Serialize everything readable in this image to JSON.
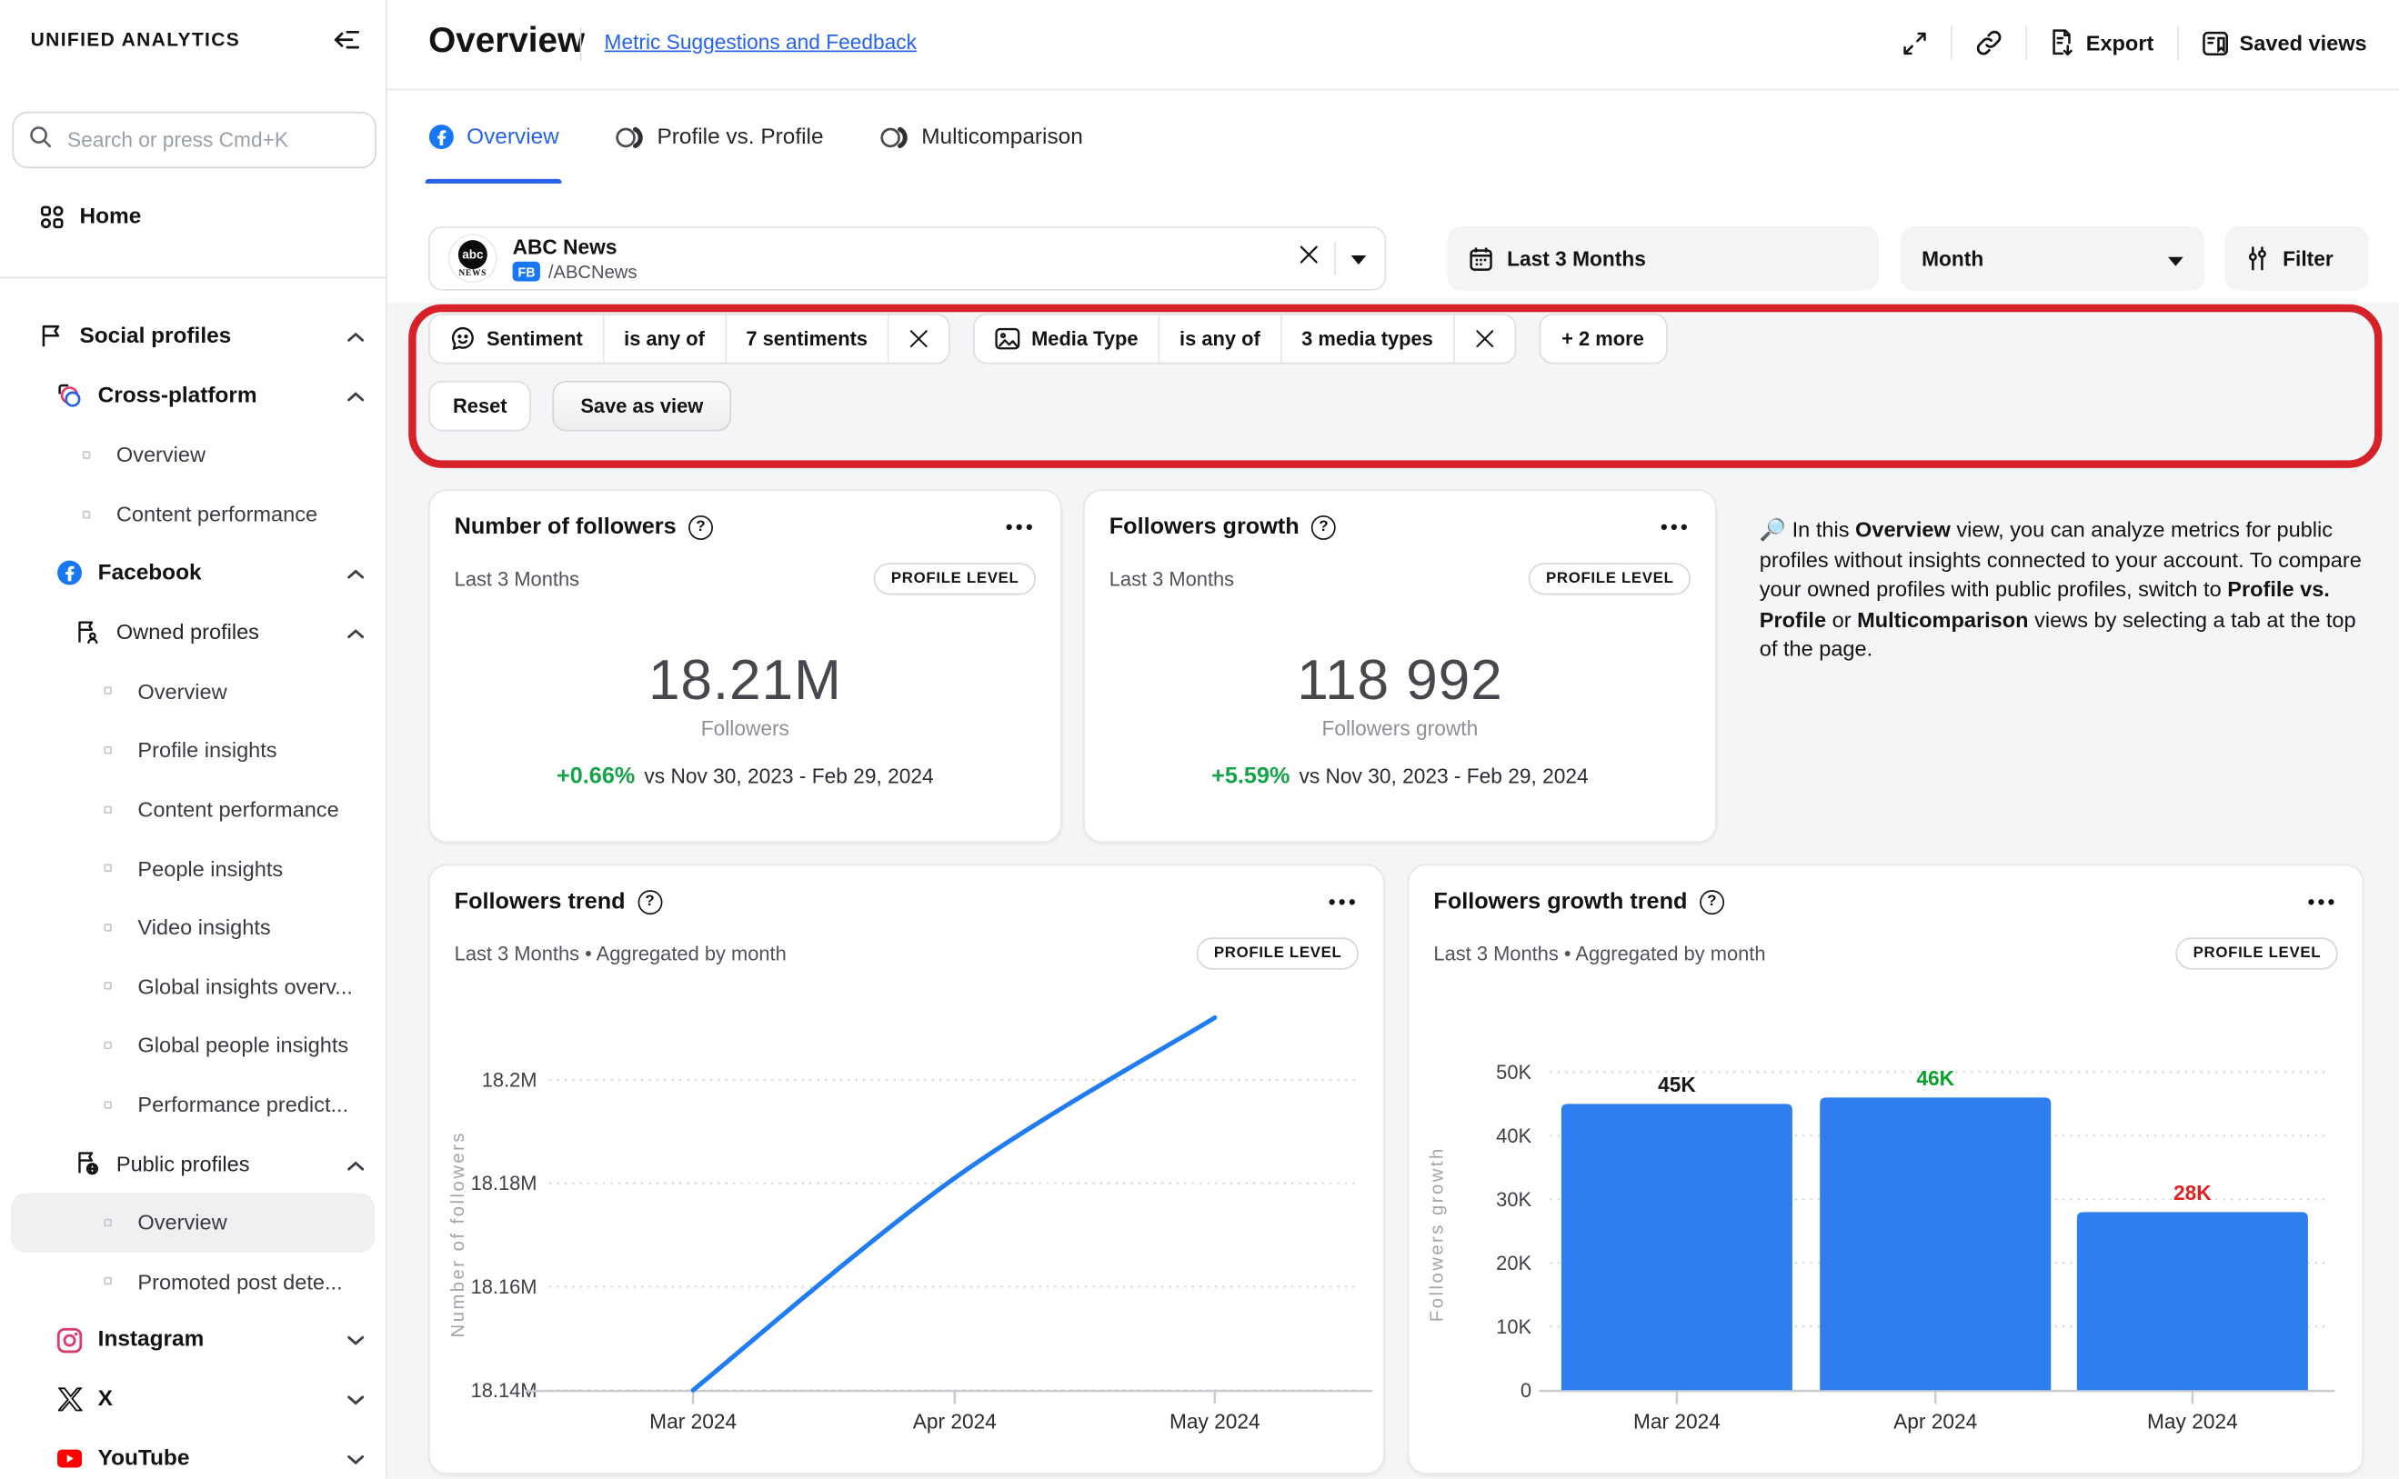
{
  "sidebar": {
    "brand": "UNIFIED ANALYTICS",
    "search_placeholder": "Search or press Cmd+K",
    "home_label": "Home",
    "nav": [
      {
        "label": "Social profiles"
      },
      {
        "label": "Cross-platform"
      },
      {
        "label": "Overview"
      },
      {
        "label": "Content performance"
      },
      {
        "label": "Facebook"
      },
      {
        "label": "Owned profiles"
      },
      {
        "label": "Overview"
      },
      {
        "label": "Profile insights"
      },
      {
        "label": "Content performance"
      },
      {
        "label": "People insights"
      },
      {
        "label": "Video insights"
      },
      {
        "label": "Global insights overv..."
      },
      {
        "label": "Global people insights"
      },
      {
        "label": "Performance predict..."
      },
      {
        "label": "Public profiles"
      },
      {
        "label": "Overview"
      },
      {
        "label": "Promoted post dete..."
      },
      {
        "label": "Instagram"
      },
      {
        "label": "X"
      },
      {
        "label": "YouTube"
      }
    ]
  },
  "header": {
    "title": "Overview",
    "link": "Metric Suggestions and Feedback",
    "export_label": "Export",
    "saved_views_label": "Saved views"
  },
  "tabs": [
    {
      "label": "Overview",
      "active": true
    },
    {
      "label": "Profile vs. Profile",
      "active": false
    },
    {
      "label": "Multicomparison",
      "active": false
    }
  ],
  "controls": {
    "profile": {
      "name": "ABC News",
      "network_badge": "FB",
      "handle": "/ABCNews",
      "avatar_top": "abc",
      "avatar_bottom": "NEWS"
    },
    "date_range": "Last 3 Months",
    "aggregation": "Month",
    "filter_label": "Filter"
  },
  "filters": {
    "sentiment": {
      "field": "Sentiment",
      "operator": "is any of",
      "value": "7 sentiments"
    },
    "media_type": {
      "field": "Media Type",
      "operator": "is any of",
      "value": "3 media types"
    },
    "more_label": "+ 2 more",
    "reset_label": "Reset",
    "save_label": "Save as view"
  },
  "kpis": [
    {
      "title": "Number of followers",
      "period": "Last 3 Months",
      "badge": "PROFILE LEVEL",
      "value": "18.21M",
      "unit": "Followers",
      "delta": "+0.66%",
      "compare": "vs Nov 30, 2023 - Feb 29, 2024"
    },
    {
      "title": "Followers growth",
      "period": "Last 3 Months",
      "badge": "PROFILE LEVEL",
      "value": "118 992",
      "unit": "Followers growth",
      "delta": "+5.59%",
      "compare": "vs Nov 30, 2023 - Feb 29, 2024"
    }
  ],
  "info": {
    "icon": "🔎",
    "prefix": " In this ",
    "bold1": "Overview",
    "mid1": " view, you can analyze metrics for public profiles without insights connected to your account. To compare your owned profiles with public profiles, switch to ",
    "bold2": "Profile vs. Profile",
    "mid2": " or ",
    "bold3": "Multicomparison",
    "suffix": " views by selecting a tab at the top of the page."
  },
  "chart_data": [
    {
      "type": "line",
      "title": "Followers trend",
      "subtitle": "Last 3 Months • Aggregated by month",
      "badge": "PROFILE LEVEL",
      "x": [
        "Mar 2024",
        "Apr 2024",
        "May 2024"
      ],
      "values": [
        18140000,
        18181000,
        18212000
      ],
      "ylabel": "Number of followers",
      "yticks": [
        {
          "label": "18.2M",
          "value": 18200000
        },
        {
          "label": "18.18M",
          "value": 18180000
        },
        {
          "label": "18.16M",
          "value": 18160000
        },
        {
          "label": "18.14M",
          "value": 18140000
        }
      ],
      "ylim": [
        18140000,
        18215000
      ],
      "grid": "dotted",
      "legend": "none",
      "line_color": "#1f7cf2"
    },
    {
      "type": "bar",
      "title": "Followers growth trend",
      "subtitle": "Last 3 Months • Aggregated by month",
      "badge": "PROFILE LEVEL",
      "categories": [
        "Mar 2024",
        "Apr 2024",
        "May 2024"
      ],
      "values": [
        45000,
        46000,
        28000
      ],
      "bar_labels": [
        "45K",
        "46K",
        "28K"
      ],
      "bar_label_colors": [
        "#18181b",
        "#0ba02c",
        "#e02121"
      ],
      "ylabel": "Followers growth",
      "yticks": [
        {
          "label": "50K",
          "value": 50000
        },
        {
          "label": "40K",
          "value": 40000
        },
        {
          "label": "30K",
          "value": 30000
        },
        {
          "label": "20K",
          "value": 20000
        },
        {
          "label": "10K",
          "value": 10000
        },
        {
          "label": "0",
          "value": 0
        }
      ],
      "ylim": [
        0,
        50000
      ],
      "grid": "dotted",
      "legend": "none",
      "bar_color": "#2e7ef0"
    }
  ],
  "colors": {
    "accent_blue": "#2563eb",
    "facebook_blue": "#1877f2",
    "positive_green": "#16a34a",
    "negative_red": "#e02121",
    "annotation_red": "#d52127",
    "bar_blue": "#2e7ef0",
    "line_blue": "#1f7cf2"
  },
  "icons": {
    "search": "magnifier",
    "collapse_sidebar": "arrow-left-to-lines",
    "home": "grid-2x2",
    "social_profiles": "flag",
    "cross_platform": "overlapping-circles",
    "owned_profiles": "flag-person",
    "public_profiles": "flag-globe",
    "expand": "diagonal-arrows",
    "share_link": "chain-link",
    "export": "document-download",
    "saved_views": "panel-bookmark",
    "calendar": "calendar",
    "filter": "sliders",
    "sentiment": "speech-bubble-smiley",
    "media_type": "picture-frame",
    "help": "question-circle",
    "more": "three-dots"
  }
}
